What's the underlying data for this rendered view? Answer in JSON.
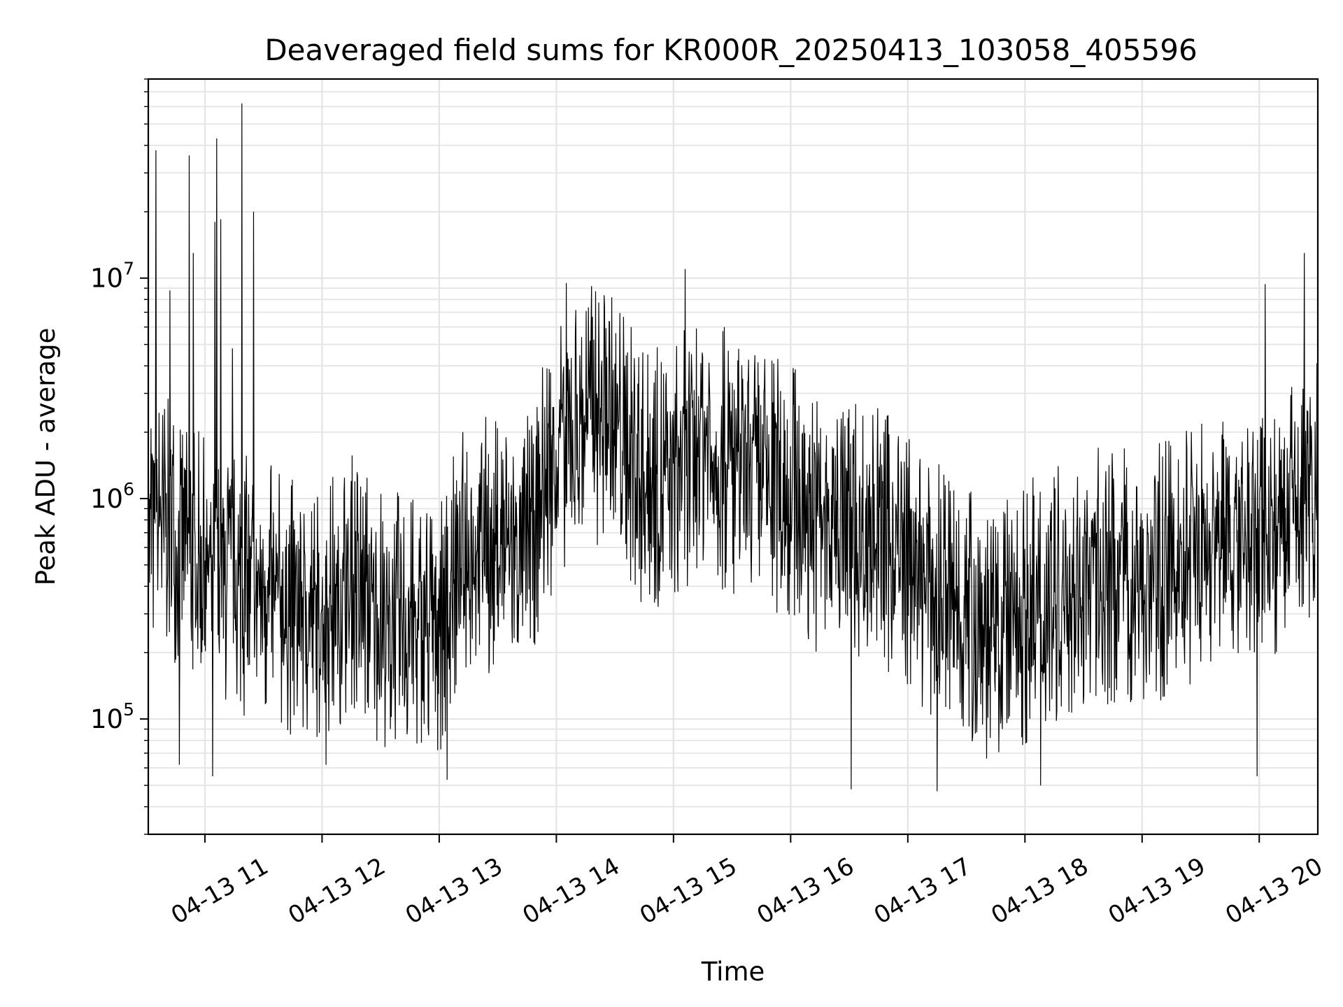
{
  "chart_data": {
    "type": "line",
    "title": "Deaveraged field sums for KR000R_20250413_103058_405596",
    "xlabel": "Time",
    "ylabel": "Peak ADU - average",
    "yscale": "log",
    "xlim": [
      "04-13 10:31",
      "04-13 20:30"
    ],
    "ylim": [
      30000,
      80000000
    ],
    "grid": "major and minor",
    "x_tick_labels": [
      "04-13 11",
      "04-13 12",
      "04-13 13",
      "04-13 14",
      "04-13 15",
      "04-13 16",
      "04-13 17",
      "04-13 18",
      "04-13 19",
      "04-13 20"
    ],
    "y_ticks": [
      {
        "base": "10",
        "exp": "5",
        "value": 100000
      },
      {
        "base": "10",
        "exp": "6",
        "value": 1000000
      },
      {
        "base": "10",
        "exp": "7",
        "value": 10000000
      }
    ],
    "line_color": "#000000",
    "series": [
      {
        "trend": [
          [
            "04-13 10:31",
            800000
          ],
          [
            "04-13 10:45",
            700000
          ],
          [
            "04-13 11:00",
            480000
          ],
          [
            "04-13 11:15",
            420000
          ],
          [
            "04-13 11:30",
            380000
          ],
          [
            "04-13 11:45",
            320000
          ],
          [
            "04-13 12:00",
            300000
          ],
          [
            "04-13 12:15",
            420000
          ],
          [
            "04-13 12:30",
            300000
          ],
          [
            "04-13 12:45",
            260000
          ],
          [
            "04-13 13:00",
            270000
          ],
          [
            "04-13 13:15",
            650000
          ],
          [
            "04-13 13:30",
            600000
          ],
          [
            "04-13 13:45",
            650000
          ],
          [
            "04-13 14:00",
            1700000
          ],
          [
            "04-13 14:15",
            2400000
          ],
          [
            "04-13 14:30",
            2200000
          ],
          [
            "04-13 14:45",
            1200000
          ],
          [
            "04-13 15:00",
            1300000
          ],
          [
            "04-13 15:15",
            1900000
          ],
          [
            "04-13 15:30",
            1300000
          ],
          [
            "04-13 15:45",
            1200000
          ],
          [
            "04-13 16:00",
            1100000
          ],
          [
            "04-13 16:15",
            750000
          ],
          [
            "04-13 16:30",
            750000
          ],
          [
            "04-13 16:45",
            700000
          ],
          [
            "04-13 17:00",
            500000
          ],
          [
            "04-13 17:15",
            380000
          ],
          [
            "04-13 17:30",
            300000
          ],
          [
            "04-13 17:45",
            230000
          ],
          [
            "04-13 18:00",
            300000
          ],
          [
            "04-13 18:15",
            380000
          ],
          [
            "04-13 18:30",
            450000
          ],
          [
            "04-13 18:45",
            450000
          ],
          [
            "04-13 19:00",
            430000
          ],
          [
            "04-13 19:15",
            480000
          ],
          [
            "04-13 19:30",
            600000
          ],
          [
            "04-13 19:45",
            700000
          ],
          [
            "04-13 20:00",
            650000
          ],
          [
            "04-13 20:15",
            800000
          ],
          [
            "04-13 20:30",
            1200000
          ]
        ],
        "spikes": [
          [
            "04-13 10:35",
            38000000
          ],
          [
            "04-13 10:42",
            8800000
          ],
          [
            "04-13 10:52",
            36000000
          ],
          [
            "04-13 10:54",
            13000000
          ],
          [
            "04-13 11:05",
            18000000
          ],
          [
            "04-13 11:06",
            43000000
          ],
          [
            "04-13 11:08",
            18500000
          ],
          [
            "04-13 11:14",
            4800000
          ],
          [
            "04-13 11:19",
            62000000
          ],
          [
            "04-13 11:25",
            20000000
          ],
          [
            "04-13 14:05",
            9500000
          ],
          [
            "04-13 14:18",
            9200000
          ],
          [
            "04-13 15:06",
            11000000
          ],
          [
            "04-13 15:26",
            6000000
          ],
          [
            "04-13 20:03",
            9400000
          ],
          [
            "04-13 20:23",
            13000000
          ],
          [
            "04-13 10:47",
            62000
          ],
          [
            "04-13 11:04",
            55000
          ],
          [
            "04-13 12:02",
            62000
          ],
          [
            "04-13 13:04",
            53000
          ],
          [
            "04-13 16:31",
            48000
          ],
          [
            "04-13 17:15",
            47000
          ],
          [
            "04-13 18:08",
            50000
          ],
          [
            "04-13 19:59",
            55000
          ]
        ]
      }
    ]
  }
}
